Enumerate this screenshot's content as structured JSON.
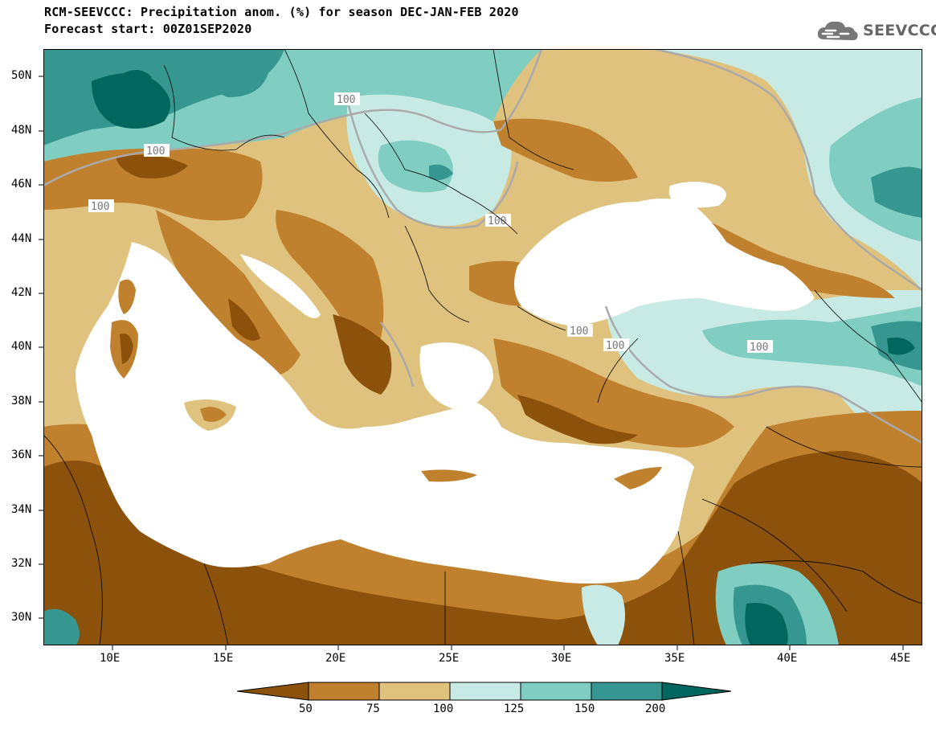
{
  "header": {
    "title_line1": "RCM-SEEVCCC: Precipitation anom. (%) for season DEC-JAN-FEB 2020",
    "title_line2": "Forecast start: 00Z01SEP2020"
  },
  "logo": {
    "text": "SEEVCCC",
    "icon": "cloud-icon"
  },
  "axes": {
    "lat_labels": [
      "50N",
      "48N",
      "46N",
      "44N",
      "42N",
      "40N",
      "38N",
      "36N",
      "34N",
      "32N",
      "30N"
    ],
    "lon_labels": [
      "10E",
      "15E",
      "20E",
      "25E",
      "30E",
      "35E",
      "40E",
      "45E"
    ]
  },
  "contour_labels": [
    "100",
    "100",
    "100",
    "100",
    "100",
    "100",
    "100"
  ],
  "colorbar": {
    "tick_labels": [
      "50",
      "75",
      "100",
      "125",
      "150",
      "200"
    ],
    "colors": [
      "#8c510a",
      "#bf812d",
      "#dfc27d",
      "#c7eae5",
      "#80cdc1",
      "#35978f",
      "#01665e"
    ]
  },
  "map_colors": {
    "sea": "#ffffff",
    "very_dry": "#8c510a",
    "dry": "#bf812d",
    "slightly_dry": "#dfc27d",
    "slightly_wet": "#c7eae5",
    "wet": "#80cdc1",
    "very_wet": "#35978f",
    "wettest": "#01665e",
    "contour_line": "#aaaaaa"
  }
}
